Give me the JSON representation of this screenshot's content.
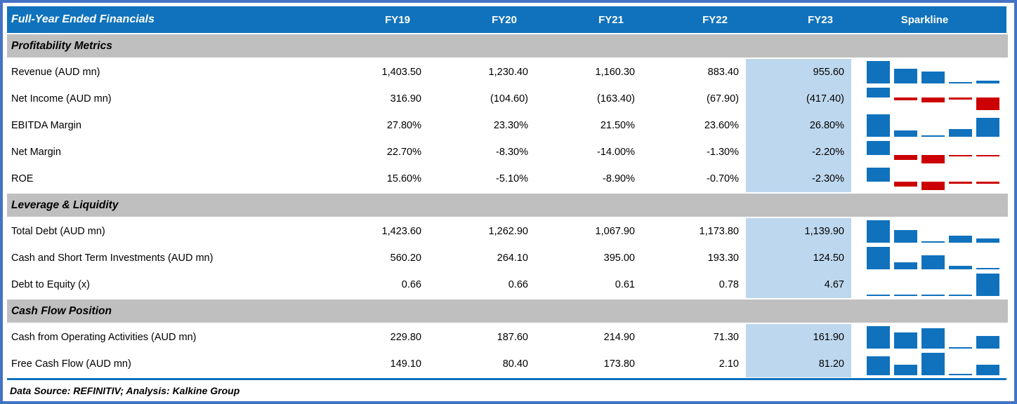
{
  "chart_data": {
    "type": "table",
    "title": "Full-Year Ended Financials",
    "columns": [
      "FY19",
      "FY20",
      "FY21",
      "FY22",
      "FY23"
    ],
    "sparkline_column": "Sparkline",
    "highlighted_column": "FY23",
    "sections": [
      {
        "title": "Profitability Metrics",
        "rows": [
          {
            "label": "Revenue (AUD mn)",
            "display": [
              "1,403.50",
              "1,230.40",
              "1,160.30",
              "883.40",
              "955.60"
            ],
            "values": [
              1403.5,
              1230.4,
              1160.3,
              883.4,
              955.6
            ]
          },
          {
            "label": "Net Income (AUD mn)",
            "display": [
              "316.90",
              "(104.60)",
              "(163.40)",
              "(67.90)",
              "(417.40)"
            ],
            "values": [
              316.9,
              -104.6,
              -163.4,
              -67.9,
              -417.4
            ]
          },
          {
            "label": "EBITDA Margin",
            "display": [
              "27.80%",
              "23.30%",
              "21.50%",
              "23.60%",
              "26.80%"
            ],
            "values": [
              27.8,
              23.3,
              21.5,
              23.6,
              26.8
            ]
          },
          {
            "label": "Net Margin",
            "display": [
              "22.70%",
              "-8.30%",
              "-14.00%",
              "-1.30%",
              "-2.20%"
            ],
            "values": [
              22.7,
              -8.3,
              -14.0,
              -1.3,
              -2.2
            ]
          },
          {
            "label": "ROE",
            "display": [
              "15.60%",
              "-5.10%",
              "-8.90%",
              "-0.70%",
              "-2.30%"
            ],
            "values": [
              15.6,
              -5.1,
              -8.9,
              -0.7,
              -2.3
            ]
          }
        ]
      },
      {
        "title": "Leverage & Liquidity",
        "rows": [
          {
            "label": "Total Debt (AUD mn)",
            "display": [
              "1,423.60",
              "1,262.90",
              "1,067.90",
              "1,173.80",
              "1,139.90"
            ],
            "values": [
              1423.6,
              1262.9,
              1067.9,
              1173.8,
              1139.9
            ]
          },
          {
            "label": "Cash and Short Term Investments (AUD mn)",
            "display": [
              "560.20",
              "264.10",
              "395.00",
              "193.30",
              "124.50"
            ],
            "values": [
              560.2,
              264.1,
              395.0,
              193.3,
              124.5
            ]
          },
          {
            "label": "Debt to Equity (x)",
            "display": [
              "0.66",
              "0.66",
              "0.61",
              "0.78",
              "4.67"
            ],
            "values": [
              0.66,
              0.66,
              0.61,
              0.78,
              4.67
            ]
          }
        ]
      },
      {
        "title": "Cash Flow Position",
        "rows": [
          {
            "label": "Cash from Operating Activities (AUD mn)",
            "display": [
              "229.80",
              "187.60",
              "214.90",
              "71.30",
              "161.90"
            ],
            "values": [
              229.8,
              187.6,
              214.9,
              71.3,
              161.9
            ]
          },
          {
            "label": "Free Cash Flow (AUD mn)",
            "display": [
              "149.10",
              "80.40",
              "173.80",
              "2.10",
              "81.20"
            ],
            "values": [
              149.1,
              80.4,
              173.8,
              2.1,
              81.2
            ]
          }
        ]
      }
    ],
    "footer": "Data Source: REFINITIV; Analysis: Kalkine Group",
    "colors": {
      "header_bg": "#1072BC",
      "section_bg": "#BFBFBF",
      "highlight_col_bg": "#BDD7EE",
      "spark_positive": "#1072BD",
      "spark_negative": "#CC0000",
      "outer_border": "#4472C4"
    },
    "sparkline_style": {
      "kind": "column",
      "positive_color": "#1072BD",
      "negative_color": "#CC0000",
      "scale": "min-to-max per row, zero axis on mixed-sign rows"
    }
  }
}
